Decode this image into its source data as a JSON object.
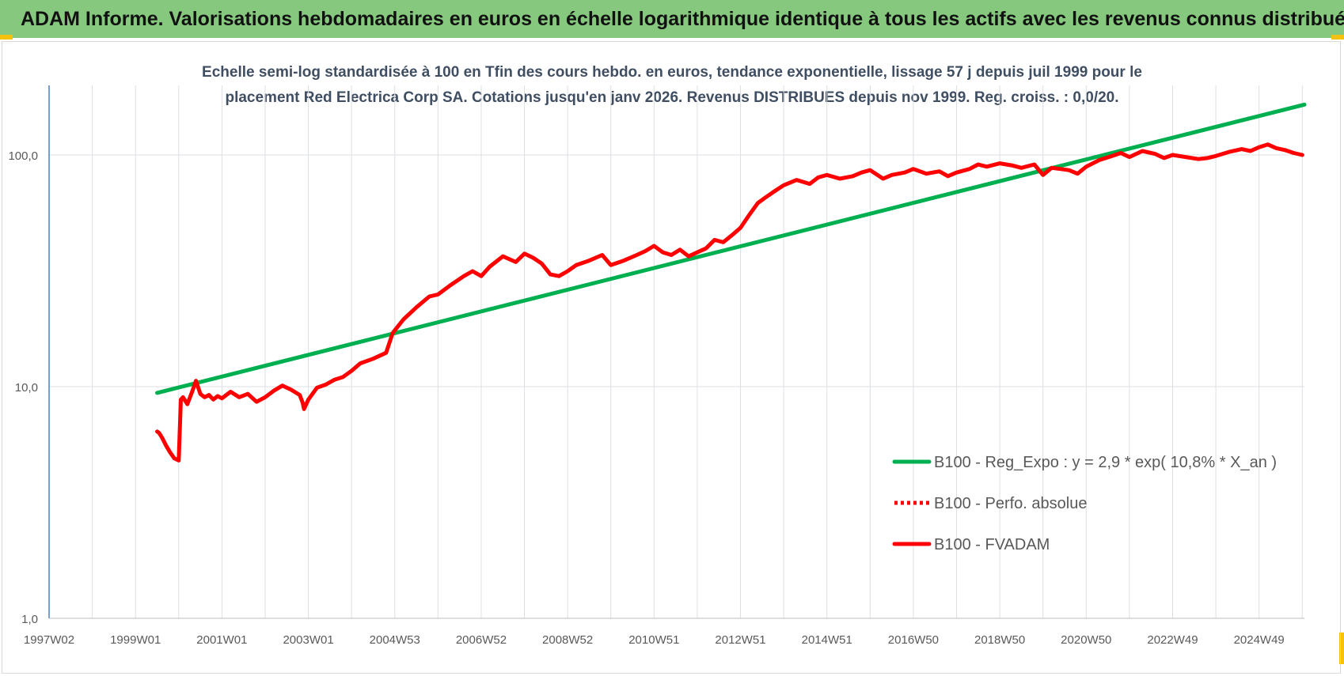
{
  "banner": {
    "title": "ADAM Informe. Valorisations hebdomadaires en euros en échelle logarithmique identique à tous les actifs avec les revenus connus distribués"
  },
  "chart_data": {
    "type": "line",
    "title_line1": "Echelle semi-log standardisée à 100 en Tfin des cours hebdo. en euros, tendance exponentielle, lissage 57 j depuis juil 1999 pour le",
    "title_line2": "placement Red Electrica Corp SA. Cotations jusqu'en janv 2026. Revenus DISTRIBUES depuis nov 1999. Reg. croiss. : 0,0/20.",
    "y_scale": "log",
    "ylim": [
      1,
      180
    ],
    "y_ticks": [
      {
        "value": 1,
        "label": "1,0"
      },
      {
        "value": 10,
        "label": "10,0"
      },
      {
        "value": 100,
        "label": "100,0"
      }
    ],
    "xlim": [
      1997.0,
      2026.05
    ],
    "x_ticks": [
      {
        "year": 1997.0,
        "label": "1997W02"
      },
      {
        "year": 1999.0,
        "label": "1999W01"
      },
      {
        "year": 2001.0,
        "label": "2001W01"
      },
      {
        "year": 2003.0,
        "label": "2003W01"
      },
      {
        "year": 2005.0,
        "label": "2004W53"
      },
      {
        "year": 2007.0,
        "label": "2006W52"
      },
      {
        "year": 2009.0,
        "label": "2008W52"
      },
      {
        "year": 2011.0,
        "label": "2010W51"
      },
      {
        "year": 2013.0,
        "label": "2012W51"
      },
      {
        "year": 2015.0,
        "label": "2014W51"
      },
      {
        "year": 2017.0,
        "label": "2016W50"
      },
      {
        "year": 2019.0,
        "label": "2018W50"
      },
      {
        "year": 2021.0,
        "label": "2020W50"
      },
      {
        "year": 2023.0,
        "label": "2022W49"
      },
      {
        "year": 2025.0,
        "label": "2024W49"
      }
    ],
    "grid": true,
    "legend_position": "bottom-right",
    "colors": {
      "green": "#00b050",
      "red": "#ff0000",
      "grid": "#dcdfe3",
      "axis": "#4f7fc0",
      "tick_text": "#595959",
      "title_text": "#404e62"
    },
    "series": [
      {
        "name": "B100 - Reg_Expo : y = 2,9 * exp( 10,8% *  X_an )",
        "style": "solid",
        "color": "#00b050",
        "x": [
          1999.5,
          2026.05
        ],
        "y": [
          9.4,
          165
        ]
      },
      {
        "name": "B100 - Perfo. absolue",
        "style": "dotted",
        "color": "#ff0000",
        "x": [],
        "y": []
      },
      {
        "name": "B100 - FVADAM",
        "style": "solid",
        "color": "#ff0000",
        "x": [
          1999.5,
          1999.55,
          1999.62,
          1999.7,
          1999.8,
          1999.9,
          2000.0,
          2000.05,
          2000.1,
          2000.2,
          2000.3,
          2000.4,
          2000.5,
          2000.6,
          2000.7,
          2000.8,
          2000.9,
          2001.0,
          2001.2,
          2001.4,
          2001.6,
          2001.8,
          2002.0,
          2002.2,
          2002.4,
          2002.6,
          2002.8,
          2002.87,
          2002.9,
          2003.0,
          2003.2,
          2003.4,
          2003.6,
          2003.8,
          2004.0,
          2004.2,
          2004.5,
          2004.8,
          2004.95,
          2005.0,
          2005.2,
          2005.5,
          2005.8,
          2006.0,
          2006.3,
          2006.6,
          2006.8,
          2007.0,
          2007.2,
          2007.5,
          2007.8,
          2008.0,
          2008.2,
          2008.4,
          2008.6,
          2008.8,
          2009.0,
          2009.2,
          2009.5,
          2009.8,
          2010.0,
          2010.3,
          2010.6,
          2010.8,
          2011.0,
          2011.2,
          2011.4,
          2011.6,
          2011.8,
          2012.0,
          2012.2,
          2012.4,
          2012.6,
          2012.8,
          2013.0,
          2013.2,
          2013.4,
          2013.6,
          2013.8,
          2014.0,
          2014.3,
          2014.6,
          2014.8,
          2015.0,
          2015.3,
          2015.6,
          2015.8,
          2016.0,
          2016.3,
          2016.5,
          2016.8,
          2017.0,
          2017.3,
          2017.6,
          2017.8,
          2018.0,
          2018.3,
          2018.5,
          2018.7,
          2019.0,
          2019.3,
          2019.5,
          2019.8,
          2020.0,
          2020.2,
          2020.4,
          2020.6,
          2020.8,
          2021.0,
          2021.3,
          2021.6,
          2021.8,
          2022.0,
          2022.3,
          2022.6,
          2022.8,
          2023.0,
          2023.3,
          2023.6,
          2023.8,
          2024.0,
          2024.3,
          2024.6,
          2024.8,
          2025.0,
          2025.2,
          2025.4,
          2025.6,
          2025.8,
          2026.0
        ],
        "y": [
          6.4,
          6.3,
          6.0,
          5.6,
          5.2,
          4.9,
          4.8,
          8.8,
          9.0,
          8.4,
          9.4,
          10.6,
          9.3,
          9.0,
          9.2,
          8.8,
          9.1,
          8.9,
          9.5,
          9.0,
          9.3,
          8.6,
          9.0,
          9.6,
          10.1,
          9.7,
          9.2,
          8.5,
          8.0,
          8.8,
          9.9,
          10.2,
          10.7,
          11.0,
          11.7,
          12.6,
          13.2,
          14.0,
          17.0,
          17.5,
          19.5,
          22.0,
          24.5,
          25.0,
          27.5,
          30.0,
          31.5,
          30.0,
          33.0,
          36.5,
          34.5,
          37.5,
          36.0,
          34.0,
          30.5,
          30.0,
          31.5,
          33.5,
          35.0,
          37.0,
          33.5,
          35.0,
          37.0,
          38.5,
          40.5,
          38.0,
          37.0,
          39.0,
          36.5,
          38.0,
          39.5,
          43.0,
          42.0,
          45.0,
          48.5,
          55.0,
          62.0,
          66.0,
          70.0,
          74.0,
          78.0,
          75.0,
          80.0,
          82.0,
          79.0,
          81.0,
          84.0,
          86.0,
          79.0,
          82.0,
          84.0,
          87.0,
          83.0,
          85.0,
          81.0,
          84.0,
          87.0,
          91.0,
          89.0,
          92.0,
          90.0,
          88.0,
          91.0,
          82.0,
          88.0,
          87.0,
          86.0,
          83.0,
          89.0,
          95.0,
          99.0,
          102.0,
          98.0,
          104.0,
          101.0,
          97.0,
          100.0,
          98.0,
          96.0,
          97.0,
          99.0,
          103.0,
          106.0,
          104.0,
          108.0,
          111.0,
          107.0,
          105.0,
          102.0,
          100.0
        ]
      }
    ]
  }
}
